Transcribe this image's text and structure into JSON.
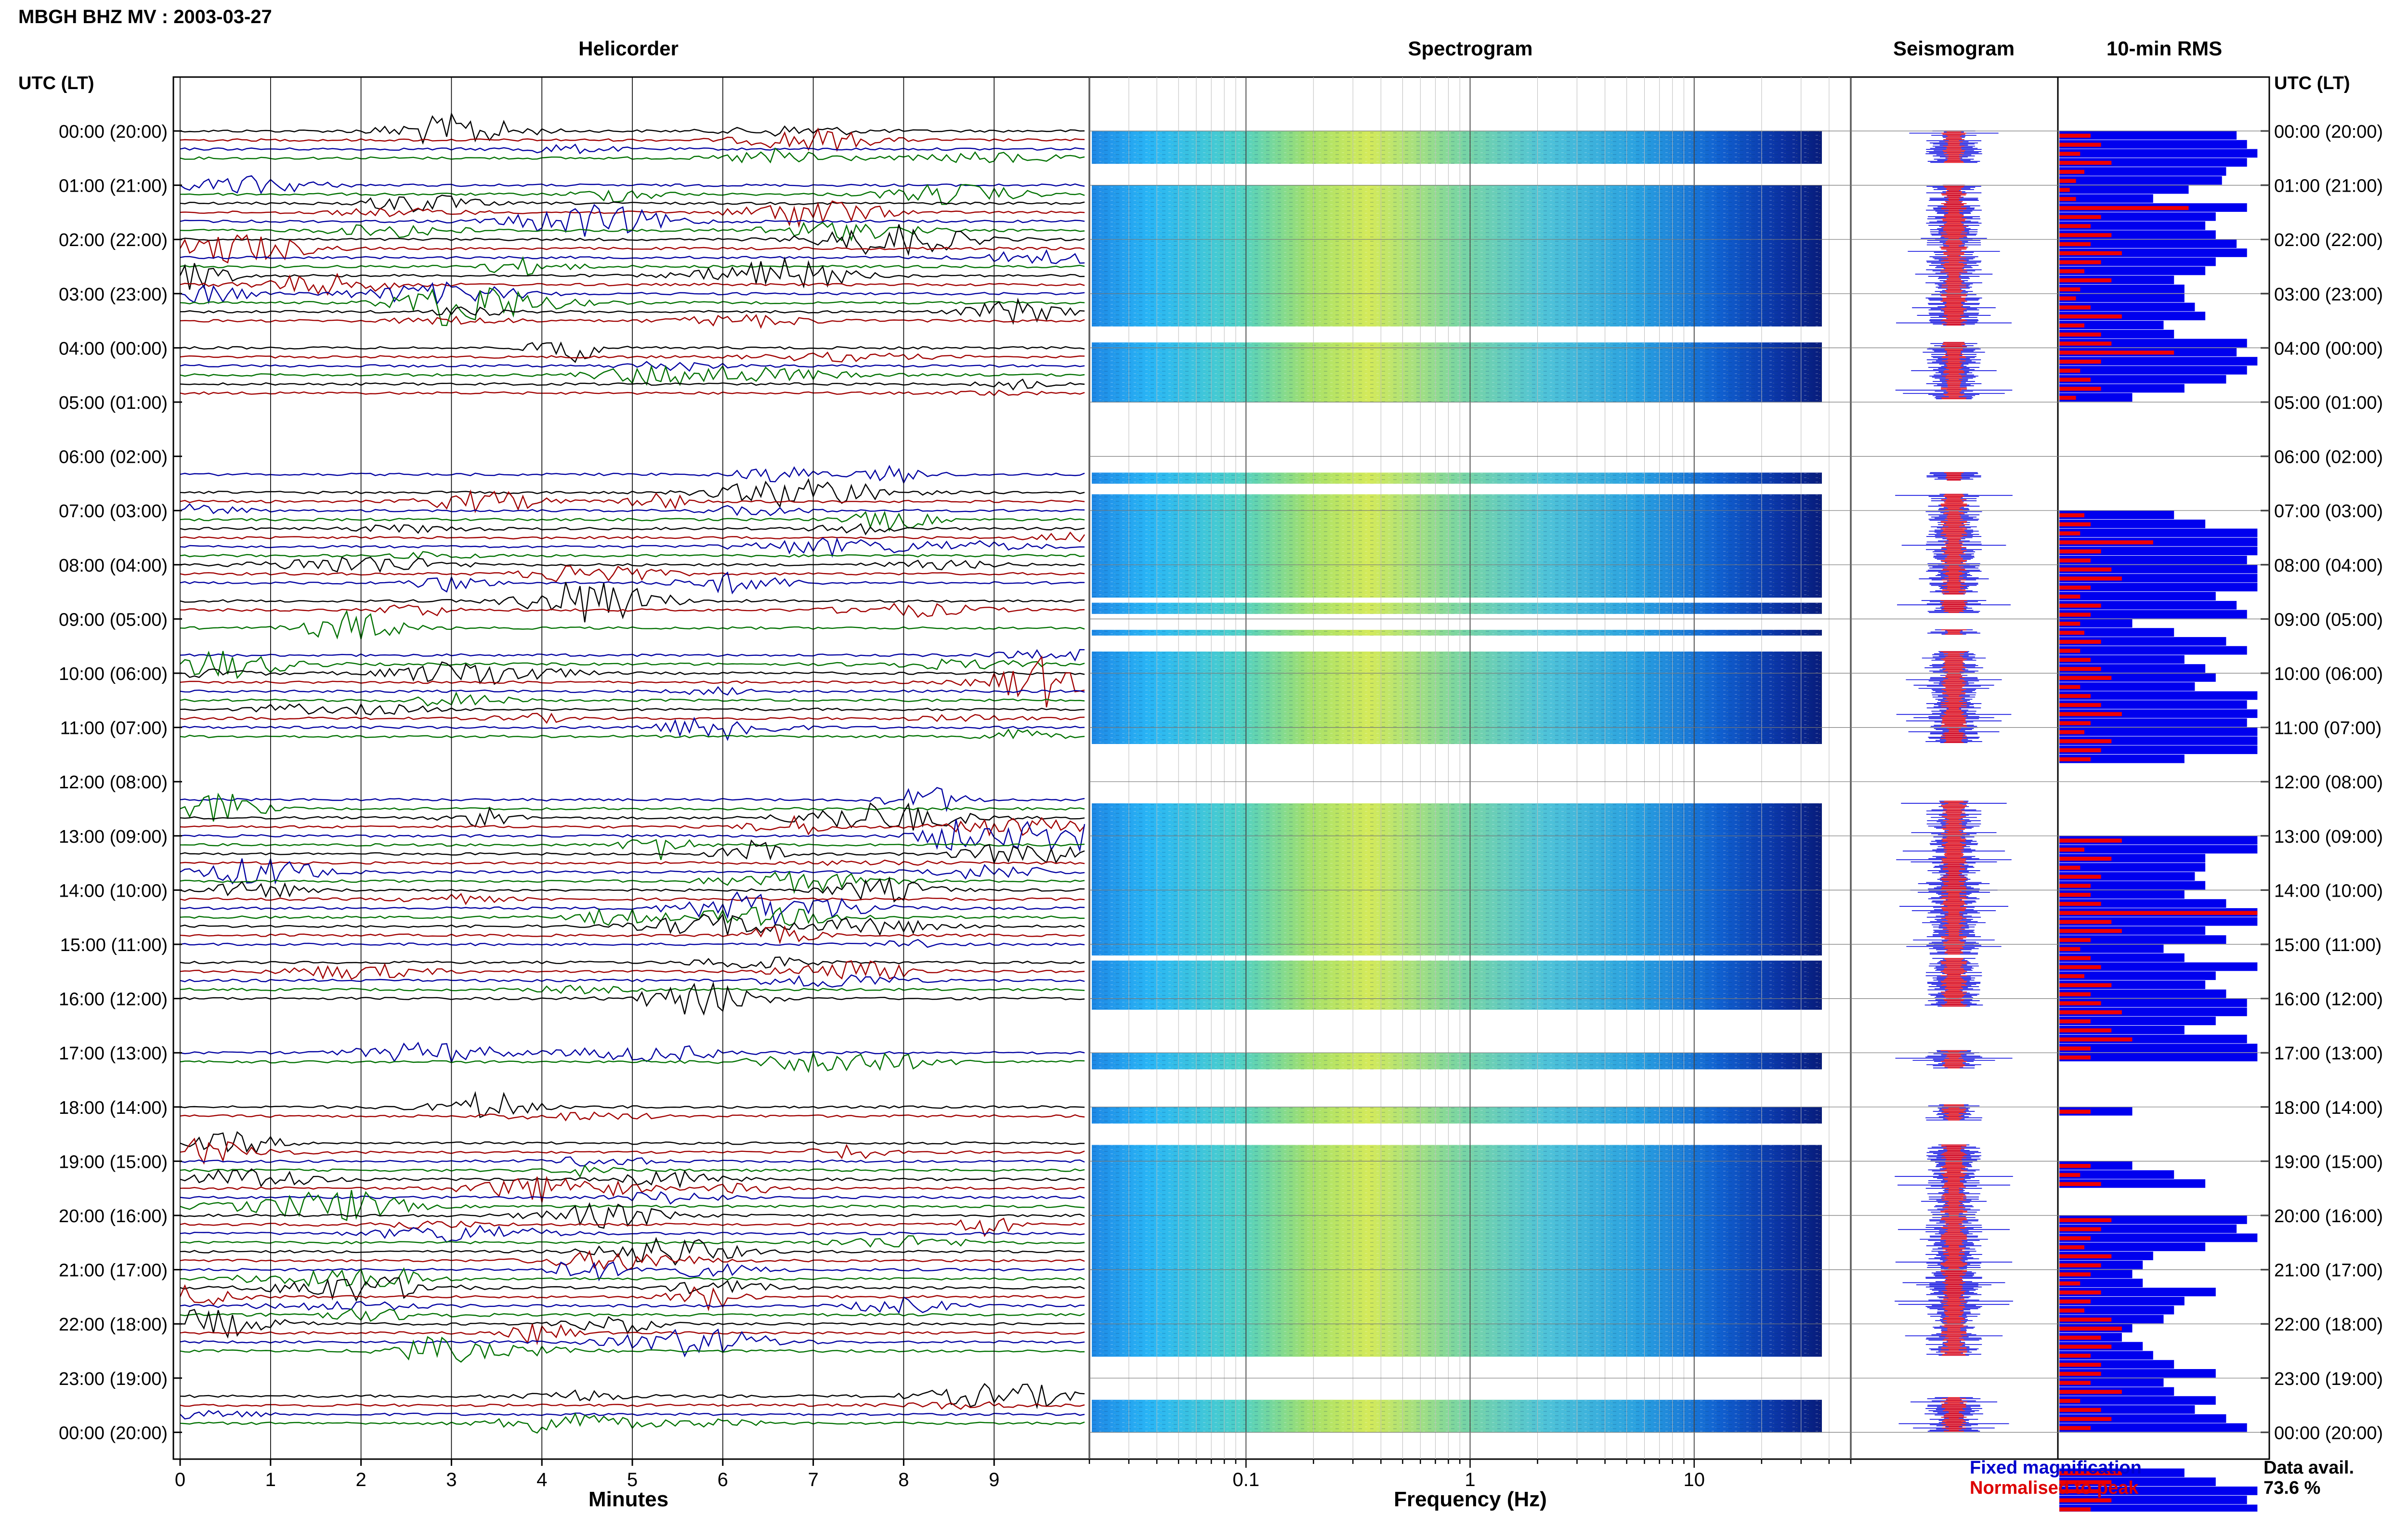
{
  "title": "MBGH BHZ MV : 2003-03-27",
  "panel_titles": {
    "helicorder": "Helicorder",
    "spectrogram": "Spectrogram",
    "seismogram": "Seismogram",
    "rms": "10-min RMS"
  },
  "time_axis_label": "UTC (LT)",
  "time_labels": [
    "00:00 (20:00)",
    "01:00 (21:00)",
    "02:00 (22:00)",
    "03:00 (23:00)",
    "04:00 (00:00)",
    "05:00 (01:00)",
    "06:00 (02:00)",
    "07:00 (03:00)",
    "08:00 (04:00)",
    "09:00 (05:00)",
    "10:00 (06:00)",
    "11:00 (07:00)",
    "12:00 (08:00)",
    "13:00 (09:00)",
    "14:00 (10:00)",
    "15:00 (11:00)",
    "16:00 (12:00)",
    "17:00 (13:00)",
    "18:00 (14:00)",
    "19:00 (15:00)",
    "20:00 (16:00)",
    "21:00 (17:00)",
    "22:00 (18:00)",
    "23:00 (19:00)",
    "00:00 (20:00)"
  ],
  "x_labels": {
    "helicorder": "Minutes",
    "spectrogram": "Frequency (Hz)"
  },
  "legend": {
    "fixed": "Fixed magnification",
    "normalised": "Normalised to peak",
    "fixed_color": "#0000cc",
    "normalised_color": "#dd0000"
  },
  "data_availability": {
    "label": "Data avail.",
    "value": "73.6 %"
  },
  "colors": {
    "trace_cycle": [
      "#000000",
      "#a00000",
      "#0000a0",
      "#007000"
    ],
    "rms_fixed": "#0000ee",
    "rms_normalised": "#ee0000"
  },
  "chart_data": {
    "type": "helicorder",
    "station": "MBGH",
    "channel": "BHZ",
    "network": "MV",
    "date": "2003-03-27",
    "hours_utc": 24,
    "helicorder": {
      "minute_ticks": [
        "0",
        "1",
        "2",
        "3",
        "4",
        "5",
        "6",
        "7",
        "8",
        "9"
      ],
      "xlim_minutes": [
        0,
        10
      ],
      "traces_per_hour": 6
    },
    "spectrogram": {
      "x_scale": "log",
      "tick_labels": [
        "0.1",
        "1",
        "10"
      ],
      "xlim_hz": [
        0.02,
        50
      ]
    },
    "data_gaps_hours": [
      [
        0.6,
        1.0
      ],
      [
        3.6,
        3.9
      ],
      [
        4.95,
        6.3
      ],
      [
        6.45,
        6.7
      ],
      [
        8.55,
        8.65
      ],
      [
        8.9,
        9.2
      ],
      [
        9.3,
        9.6
      ],
      [
        11.3,
        12.35
      ],
      [
        15.2,
        15.25
      ],
      [
        16.15,
        16.95
      ],
      [
        17.3,
        17.95
      ],
      [
        18.25,
        18.7
      ],
      [
        22.6,
        23.35
      ],
      [
        24.0,
        24.05
      ]
    ],
    "rms_10min": {
      "fixed_magnification": [
        0.85,
        0.9,
        0.95,
        0.9,
        0.8,
        0.78,
        0.62,
        0.45,
        0.9,
        0.75,
        0.7,
        0.75,
        0.85,
        0.9,
        0.75,
        0.7,
        0.55,
        0.6,
        0.6,
        0.65,
        0.7,
        0.5,
        0.55,
        0.9,
        0.85,
        0.95,
        0.9,
        0.8,
        0.6,
        0.35,
        0,
        0,
        0,
        0,
        0,
        0,
        0,
        0,
        0,
        0,
        0,
        0,
        0.55,
        0.7,
        0.95,
        0.95,
        0.95,
        0.9,
        0.95,
        0.95,
        0.95,
        0.75,
        0.85,
        0.9,
        0.35,
        0.55,
        0.8,
        0.9,
        0.6,
        0.7,
        0.75,
        0.65,
        0.95,
        0.9,
        0.95,
        0.9,
        0.95,
        0.95,
        0.95,
        0.6,
        0,
        0,
        0,
        0,
        0,
        0,
        0,
        0,
        0.95,
        0.95,
        0.7,
        0.7,
        0.65,
        0.7,
        0.6,
        0.8,
        0.95,
        0.95,
        0.7,
        0.8,
        0.5,
        0.6,
        0.95,
        0.75,
        0.7,
        0.8,
        0.9,
        0.9,
        0.75,
        0.6,
        0.9,
        0.95,
        0.95,
        0,
        0,
        0,
        0,
        0,
        0.35,
        0,
        0,
        0,
        0,
        0,
        0.35,
        0.55,
        0.7,
        0,
        0,
        0,
        0.9,
        0.85,
        0.95,
        0.7,
        0.45,
        0.4,
        0.35,
        0.4,
        0.75,
        0.6,
        0.55,
        0.5,
        0.35,
        0.3,
        0.4,
        0.45,
        0.55,
        0.75,
        0.5,
        0.55,
        0.75,
        0.65,
        0.8,
        0.9,
        0,
        0,
        0,
        0,
        0.6,
        0.75,
        0.95,
        0.9,
        0.95,
        0.9,
        0.6,
        0.95
      ],
      "normalised_to_peak": [
        0.15,
        0.2,
        0.1,
        0.25,
        0.12,
        0.08,
        0.05,
        0.08,
        0.62,
        0.2,
        0.15,
        0.25,
        0.15,
        0.3,
        0.2,
        0.12,
        0.25,
        0.1,
        0.08,
        0.15,
        0.3,
        0.12,
        0.2,
        0.25,
        0.55,
        0.2,
        0.1,
        0.15,
        0.2,
        0.08,
        0,
        0,
        0,
        0,
        0,
        0,
        0,
        0,
        0,
        0,
        0,
        0,
        0.12,
        0.15,
        0.1,
        0.45,
        0.2,
        0.15,
        0.25,
        0.3,
        0.15,
        0.1,
        0.2,
        0.15,
        0.1,
        0.12,
        0.2,
        0.1,
        0.15,
        0.2,
        0.25,
        0.1,
        0.15,
        0.2,
        0.3,
        0.15,
        0.12,
        0.25,
        0.2,
        0.15,
        0,
        0,
        0,
        0,
        0,
        0,
        0,
        0,
        0.3,
        0.12,
        0.25,
        0.1,
        0.2,
        0.15,
        0.15,
        0.2,
        0.95,
        0.25,
        0.3,
        0.15,
        0.1,
        0.15,
        0.2,
        0.12,
        0.25,
        0.15,
        0.2,
        0.3,
        0.15,
        0.25,
        0.35,
        0.15,
        0.15,
        0,
        0,
        0,
        0,
        0,
        0.15,
        0,
        0,
        0,
        0,
        0,
        0.15,
        0.1,
        0.2,
        0,
        0,
        0,
        0.25,
        0.2,
        0.15,
        0.12,
        0.25,
        0.2,
        0.15,
        0.1,
        0.2,
        0.15,
        0.12,
        0.25,
        0.3,
        0.2,
        0.25,
        0.15,
        0.2,
        0.2,
        0.15,
        0.3,
        0.1,
        0.2,
        0.25,
        0.15,
        0,
        0,
        0,
        0,
        0.3,
        0.25,
        0.2,
        0.25,
        0.15,
        0.2,
        0.35,
        0.2
      ]
    }
  }
}
